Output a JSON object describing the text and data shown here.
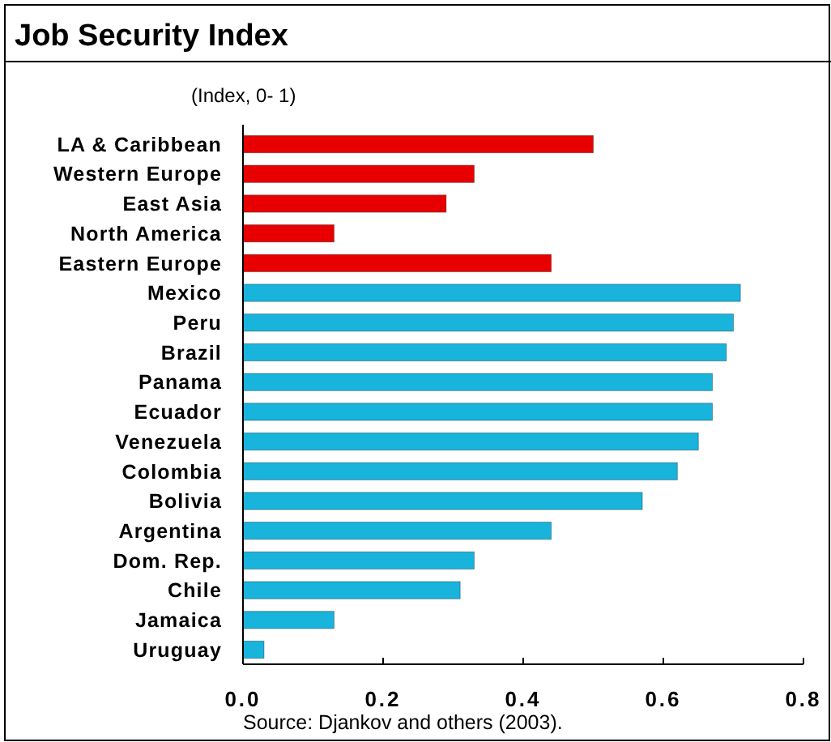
{
  "chart_data": {
    "type": "bar",
    "orientation": "horizontal",
    "title": "Job Security Index",
    "subtitle": "(Index, 0- 1)",
    "categories": [
      "LA & Caribbean",
      "Western Europe",
      "East Asia",
      "North America",
      "Eastern Europe",
      "Mexico",
      "Peru",
      "Brazil",
      "Panama",
      "Ecuador",
      "Venezuela",
      "Colombia",
      "Bolivia",
      "Argentina",
      "Dom. Rep.",
      "Chile",
      "Jamaica",
      "Uruguay"
    ],
    "values": [
      0.5,
      0.33,
      0.29,
      0.13,
      0.44,
      0.71,
      0.7,
      0.69,
      0.67,
      0.67,
      0.65,
      0.62,
      0.57,
      0.44,
      0.33,
      0.31,
      0.13,
      0.03
    ],
    "colors": [
      "#e80000",
      "#e80000",
      "#e80000",
      "#e80000",
      "#e80000",
      "#18b4dc",
      "#18b4dc",
      "#18b4dc",
      "#18b4dc",
      "#18b4dc",
      "#18b4dc",
      "#18b4dc",
      "#18b4dc",
      "#18b4dc",
      "#18b4dc",
      "#18b4dc",
      "#18b4dc",
      "#18b4dc"
    ],
    "xlim": [
      0,
      0.8
    ],
    "xticks": [
      {
        "value": 0,
        "label": "0.0"
      },
      {
        "value": 0.2,
        "label": "0.2"
      },
      {
        "value": 0.4,
        "label": "0.4"
      },
      {
        "value": 0.6,
        "label": "0.6"
      },
      {
        "value": 0.8,
        "label": "0.8"
      }
    ],
    "grid": false,
    "annotations": [
      "Source: Djankov and others (2003)."
    ]
  }
}
